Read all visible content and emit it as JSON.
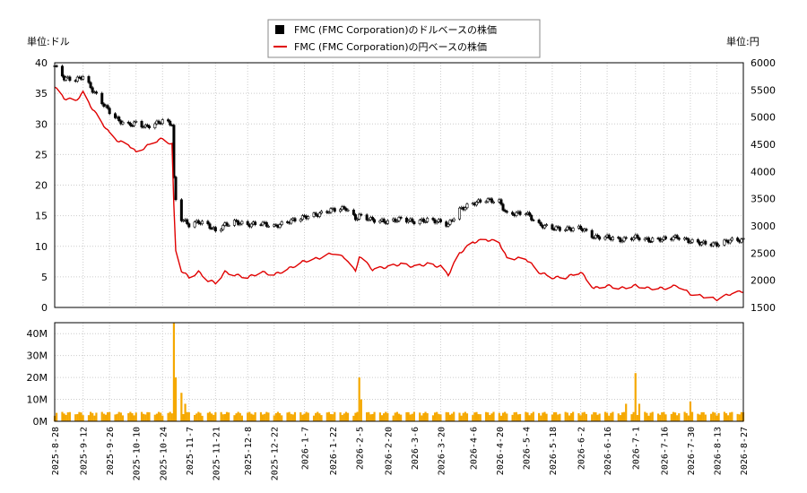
{
  "legend": {
    "usd_series": "FMC (FMC Corporation)のドルベースの株価",
    "jpy_series": "FMC (FMC Corporation)の円ベースの株価"
  },
  "axes": {
    "left_unit": "単位:ドル",
    "right_unit": "単位:円"
  },
  "colors": {
    "usd_candle": "#000000",
    "jpy_line": "#e00000",
    "volume_bar": "#f5a800",
    "grid": "#cccccc"
  },
  "chart_data": [
    {
      "type": "line",
      "legend_position": "top-center",
      "grid": true,
      "x_range": [
        "2025-08-28",
        "2026-08-27"
      ],
      "y_left_range": [
        0,
        40
      ],
      "y_right_range": [
        1500,
        6000
      ],
      "y_left_ticks": [
        "0",
        "5",
        "10",
        "15",
        "20",
        "25",
        "30",
        "35",
        "40"
      ],
      "y_right_ticks": [
        "1500",
        "2000",
        "2500",
        "3000",
        "3500",
        "4000",
        "4500",
        "5000",
        "5500",
        "6000"
      ],
      "x_ticks": [
        "2025-8-28",
        "2025-9-12",
        "2025-9-26",
        "2025-10-10",
        "2025-10-24",
        "2025-11-7",
        "2025-11-21",
        "2025-12-8",
        "2025-12-22",
        "2026-1-7",
        "2026-1-22",
        "2026-2-5",
        "2026-2-20",
        "2026-3-6",
        "2026-3-20",
        "2026-4-6",
        "2026-4-20",
        "2026-5-4",
        "2026-5-18",
        "2026-6-2",
        "2026-6-16",
        "2026-7-1",
        "2026-7-16",
        "2026-7-30",
        "2026-8-13",
        "2026-8-27"
      ],
      "series": [
        {
          "name": "FMC (FMC Corporation)のドルベースの株価",
          "axis": "left",
          "style": "candlestick",
          "points": [
            [
              "2025-08-28",
              39.5
            ],
            [
              "2025-09-02",
              37.5
            ],
            [
              "2025-09-08",
              37.2
            ],
            [
              "2025-09-12",
              37.8
            ],
            [
              "2025-09-17",
              35.5
            ],
            [
              "2025-09-22",
              33.5
            ],
            [
              "2025-09-26",
              32.0
            ],
            [
              "2025-10-01",
              30.5
            ],
            [
              "2025-10-06",
              29.8
            ],
            [
              "2025-10-10",
              30.2
            ],
            [
              "2025-10-15",
              29.5
            ],
            [
              "2025-10-20",
              30.0
            ],
            [
              "2025-10-24",
              30.5
            ],
            [
              "2025-10-29",
              30.0
            ],
            [
              "2025-10-30",
              21.0
            ],
            [
              "2025-10-31",
              17.5
            ],
            [
              "2025-11-03",
              14.5
            ],
            [
              "2025-11-07",
              13.5
            ],
            [
              "2025-11-12",
              14.0
            ],
            [
              "2025-11-17",
              13.5
            ],
            [
              "2025-11-21",
              12.5
            ],
            [
              "2025-11-26",
              13.5
            ],
            [
              "2025-12-01",
              14.0
            ],
            [
              "2025-12-08",
              13.5
            ],
            [
              "2025-12-15",
              13.8
            ],
            [
              "2025-12-22",
              13.2
            ],
            [
              "2025-12-29",
              14.0
            ],
            [
              "2026-01-07",
              14.8
            ],
            [
              "2026-01-14",
              15.2
            ],
            [
              "2026-01-22",
              16.0
            ],
            [
              "2026-01-29",
              16.2
            ],
            [
              "2026-02-03",
              14.5
            ],
            [
              "2026-02-05",
              15.0
            ],
            [
              "2026-02-12",
              14.3
            ],
            [
              "2026-02-20",
              14.0
            ],
            [
              "2026-02-27",
              14.5
            ],
            [
              "2026-03-06",
              14.0
            ],
            [
              "2026-03-13",
              14.3
            ],
            [
              "2026-03-20",
              14.0
            ],
            [
              "2026-03-24",
              13.5
            ],
            [
              "2026-03-30",
              16.0
            ],
            [
              "2026-04-06",
              17.0
            ],
            [
              "2026-04-13",
              17.6
            ],
            [
              "2026-04-20",
              17.3
            ],
            [
              "2026-04-24",
              15.2
            ],
            [
              "2026-05-04",
              15.5
            ],
            [
              "2026-05-11",
              13.5
            ],
            [
              "2026-05-18",
              13.0
            ],
            [
              "2026-05-25",
              12.8
            ],
            [
              "2026-06-02",
              13.0
            ],
            [
              "2026-06-09",
              11.5
            ],
            [
              "2026-06-16",
              11.5
            ],
            [
              "2026-06-23",
              11.0
            ],
            [
              "2026-07-01",
              11.5
            ],
            [
              "2026-07-08",
              11.0
            ],
            [
              "2026-07-16",
              11.2
            ],
            [
              "2026-07-23",
              11.5
            ],
            [
              "2026-07-30",
              10.8
            ],
            [
              "2026-08-06",
              10.5
            ],
            [
              "2026-08-13",
              10.3
            ],
            [
              "2026-08-20",
              11.0
            ],
            [
              "2026-08-27",
              11.0
            ]
          ]
        },
        {
          "name": "FMC (FMC Corporation)の円ベースの株価",
          "axis": "right",
          "style": "line",
          "points": [
            [
              "2025-08-28",
              5550
            ],
            [
              "2025-09-02",
              5350
            ],
            [
              "2025-09-08",
              5300
            ],
            [
              "2025-09-12",
              5450
            ],
            [
              "2025-09-17",
              5150
            ],
            [
              "2025-09-22",
              4900
            ],
            [
              "2025-09-26",
              4700
            ],
            [
              "2025-10-01",
              4550
            ],
            [
              "2025-10-06",
              4500
            ],
            [
              "2025-10-10",
              4350
            ],
            [
              "2025-10-15",
              4450
            ],
            [
              "2025-10-20",
              4550
            ],
            [
              "2025-10-24",
              4600
            ],
            [
              "2025-10-29",
              4500
            ],
            [
              "2025-10-30",
              3350
            ],
            [
              "2025-10-31",
              2550
            ],
            [
              "2025-11-03",
              2180
            ],
            [
              "2025-11-07",
              2050
            ],
            [
              "2025-11-12",
              2150
            ],
            [
              "2025-11-17",
              2000
            ],
            [
              "2025-11-21",
              1950
            ],
            [
              "2025-11-26",
              2150
            ],
            [
              "2025-12-01",
              2100
            ],
            [
              "2025-12-08",
              2050
            ],
            [
              "2025-12-15",
              2150
            ],
            [
              "2025-12-22",
              2100
            ],
            [
              "2025-12-29",
              2200
            ],
            [
              "2026-01-07",
              2350
            ],
            [
              "2026-01-14",
              2400
            ],
            [
              "2026-01-22",
              2500
            ],
            [
              "2026-01-29",
              2400
            ],
            [
              "2026-02-03",
              2150
            ],
            [
              "2026-02-05",
              2450
            ],
            [
              "2026-02-12",
              2200
            ],
            [
              "2026-02-20",
              2250
            ],
            [
              "2026-02-27",
              2300
            ],
            [
              "2026-03-06",
              2250
            ],
            [
              "2026-03-13",
              2300
            ],
            [
              "2026-03-20",
              2250
            ],
            [
              "2026-03-24",
              2100
            ],
            [
              "2026-03-30",
              2500
            ],
            [
              "2026-04-06",
              2700
            ],
            [
              "2026-04-13",
              2750
            ],
            [
              "2026-04-20",
              2700
            ],
            [
              "2026-04-24",
              2400
            ],
            [
              "2026-05-04",
              2400
            ],
            [
              "2026-05-11",
              2150
            ],
            [
              "2026-05-18",
              2050
            ],
            [
              "2026-05-25",
              2050
            ],
            [
              "2026-06-02",
              2150
            ],
            [
              "2026-06-09",
              1850
            ],
            [
              "2026-06-16",
              1900
            ],
            [
              "2026-06-23",
              1850
            ],
            [
              "2026-07-01",
              1900
            ],
            [
              "2026-07-08",
              1850
            ],
            [
              "2026-07-16",
              1850
            ],
            [
              "2026-07-23",
              1900
            ],
            [
              "2026-07-30",
              1750
            ],
            [
              "2026-08-06",
              1700
            ],
            [
              "2026-08-13",
              1650
            ],
            [
              "2026-08-20",
              1750
            ],
            [
              "2026-08-27",
              1800
            ]
          ]
        }
      ]
    },
    {
      "type": "bar",
      "grid": true,
      "y_range": [
        0,
        45000000
      ],
      "y_ticks": [
        "0M",
        "10M",
        "20M",
        "30M",
        "40M"
      ],
      "series": [
        {
          "name": "volume",
          "points": [
            [
              "2025-09-15",
              2800000
            ],
            [
              "2025-10-30",
              45000000
            ],
            [
              "2025-10-31",
              20000000
            ],
            [
              "2025-11-03",
              13000000
            ],
            [
              "2025-11-05",
              8000000
            ],
            [
              "2026-02-05",
              20000000
            ],
            [
              "2026-02-06",
              10000000
            ],
            [
              "2026-06-26",
              8000000
            ],
            [
              "2026-07-01",
              22000000
            ],
            [
              "2026-07-03",
              8000000
            ],
            [
              "2026-07-30",
              9000000
            ]
          ],
          "baseline": 2500000
        }
      ]
    }
  ]
}
